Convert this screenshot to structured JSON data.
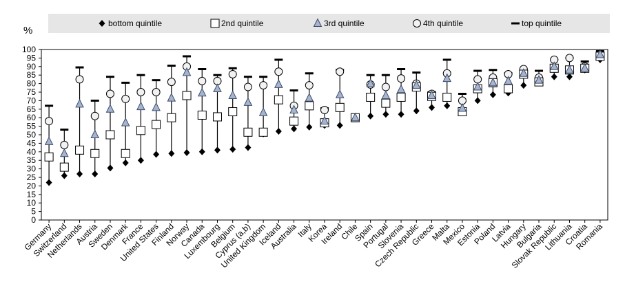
{
  "chart_data": {
    "type": "scatter",
    "unit_label": "%",
    "ylim": [
      0,
      100
    ],
    "yticks": [
      0,
      5,
      10,
      15,
      20,
      25,
      30,
      35,
      40,
      45,
      50,
      55,
      60,
      65,
      70,
      75,
      80,
      85,
      90,
      95,
      100
    ],
    "grid": false,
    "legend_position": "top",
    "categories": [
      "Germany",
      "Switzerland",
      "Netherlands",
      "Austria",
      "Sweden",
      "Denmark",
      "France",
      "United States",
      "Finland",
      "Norway",
      "Canada",
      "Luxembourg",
      "Belgium",
      "Cyprus (a,b)",
      "United Kingdom",
      "Iceland",
      "Australia",
      "Italy",
      "Korea",
      "Ireland",
      "Chile",
      "Spain",
      "Portugal",
      "Slovenia",
      "Czech Republic",
      "Greece",
      "Malta",
      "Mexico",
      "Estonia",
      "Poland",
      "Latvia",
      "Hungary",
      "Bulgaria",
      "Slovak Republic",
      "Lithuania",
      "Croatia",
      "Romania"
    ],
    "series": [
      {
        "name": "bottom quintile",
        "marker": "diamond",
        "values": [
          22,
          26,
          27,
          27,
          30.5,
          33.5,
          35,
          38.5,
          39,
          39.5,
          40,
          41,
          41.5,
          42.5,
          50.5,
          52,
          53.5,
          54.5,
          55.5,
          55.5,
          60,
          61,
          62,
          62,
          64,
          66,
          67,
          65,
          70,
          73.5,
          74.5,
          79,
          80.5,
          84,
          84,
          88,
          94
        ]
      },
      {
        "name": "2nd quintile",
        "marker": "square",
        "values": [
          37,
          31,
          41,
          39,
          50,
          39,
          52.5,
          56,
          60,
          73,
          61.5,
          60.5,
          63.5,
          51.5,
          51.5,
          70.5,
          58,
          67,
          57,
          66,
          60,
          72,
          68.5,
          72,
          78,
          72.5,
          72,
          63.5,
          77,
          80.5,
          77,
          85.5,
          81,
          89,
          88,
          89,
          96
        ]
      },
      {
        "name": "3rd quintile",
        "marker": "triangle",
        "values": [
          46,
          39,
          68,
          50,
          65,
          57,
          66.5,
          66,
          71.5,
          86.5,
          74.5,
          77,
          73,
          69,
          63,
          79.5,
          64.5,
          71.5,
          58,
          73.5,
          60,
          80,
          73,
          76.5,
          79,
          73,
          83,
          65.5,
          78,
          80.5,
          81.5,
          86,
          82,
          90,
          88,
          89,
          97
        ]
      },
      {
        "name": "4th quintile",
        "marker": "circle",
        "values": [
          58,
          44,
          82.5,
          61,
          74,
          71,
          75,
          75,
          81,
          90,
          81.5,
          81.5,
          85.5,
          78,
          79,
          87,
          67,
          79,
          64.5,
          87,
          60,
          79.5,
          78,
          83,
          80,
          74,
          86,
          70,
          82.5,
          83.5,
          85.5,
          88.5,
          83.5,
          94,
          95,
          90,
          97
        ]
      },
      {
        "name": "top quintile",
        "marker": "dash",
        "values": [
          67,
          53,
          89.5,
          70,
          84,
          80.5,
          85,
          82,
          90.5,
          96,
          88.5,
          85,
          89,
          84,
          84,
          94,
          76,
          86,
          65.5,
          88,
          61,
          85,
          85,
          88.5,
          86.5,
          75,
          94,
          74,
          87.5,
          88,
          86,
          87,
          87.5,
          94,
          95,
          93,
          99
        ]
      }
    ]
  }
}
